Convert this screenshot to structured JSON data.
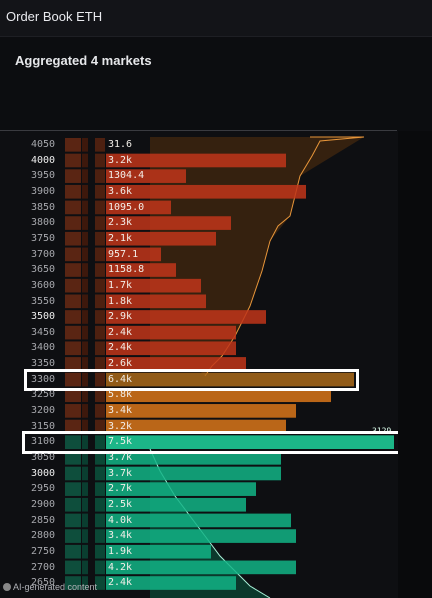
{
  "window": {
    "title": "Order Book ETH"
  },
  "panel": {
    "subtitle": "Aggregated 4 markets"
  },
  "book": {
    "rows": [
      {
        "price": "4050",
        "volume": "31.6",
        "side": "ask",
        "major": false
      },
      {
        "price": "4000",
        "volume": "3.2k",
        "side": "ask",
        "major": true
      },
      {
        "price": "3950",
        "volume": "1304.4",
        "side": "ask",
        "major": false
      },
      {
        "price": "3900",
        "volume": "3.6k",
        "side": "ask",
        "major": false
      },
      {
        "price": "3850",
        "volume": "1095.0",
        "side": "ask",
        "major": false
      },
      {
        "price": "3800",
        "volume": "2.3k",
        "side": "ask",
        "major": false
      },
      {
        "price": "3750",
        "volume": "2.1k",
        "side": "ask",
        "major": false
      },
      {
        "price": "3700",
        "volume": "957.1",
        "side": "ask",
        "major": false
      },
      {
        "price": "3650",
        "volume": "1158.8",
        "side": "ask",
        "major": false
      },
      {
        "price": "3600",
        "volume": "1.7k",
        "side": "ask",
        "major": false
      },
      {
        "price": "3550",
        "volume": "1.8k",
        "side": "ask",
        "major": false
      },
      {
        "price": "3500",
        "volume": "2.9k",
        "side": "ask",
        "major": true
      },
      {
        "price": "3450",
        "volume": "2.4k",
        "side": "ask",
        "major": false
      },
      {
        "price": "3400",
        "volume": "2.4k",
        "side": "ask",
        "major": false
      },
      {
        "price": "3350",
        "volume": "2.6k",
        "side": "ask",
        "major": false
      },
      {
        "price": "3300",
        "volume": "6.4k",
        "side": "ask",
        "major": false
      },
      {
        "price": "3250",
        "volume": "5.8k",
        "side": "ask",
        "major": false
      },
      {
        "price": "3200",
        "volume": "3.4k",
        "side": "ask",
        "major": false
      },
      {
        "price": "3150",
        "volume": "3.2k",
        "side": "ask",
        "major": false
      },
      {
        "price": "3100",
        "volume": "7.5k",
        "side": "bid",
        "major": false
      },
      {
        "price": "3050",
        "volume": "3.7k",
        "side": "bid",
        "major": false
      },
      {
        "price": "3000",
        "volume": "3.7k",
        "side": "bid",
        "major": true
      },
      {
        "price": "2950",
        "volume": "2.7k",
        "side": "bid",
        "major": false
      },
      {
        "price": "2900",
        "volume": "2.5k",
        "side": "bid",
        "major": false
      },
      {
        "price": "2850",
        "volume": "4.0k",
        "side": "bid",
        "major": false
      },
      {
        "price": "2800",
        "volume": "3.4k",
        "side": "bid",
        "major": false
      },
      {
        "price": "2750",
        "volume": "1.9k",
        "side": "bid",
        "major": false
      },
      {
        "price": "2700",
        "volume": "4.2k",
        "side": "bid",
        "major": false
      },
      {
        "price": "2650",
        "volume": "2.4k",
        "side": "bid",
        "major": false
      }
    ],
    "spread_label": "3129",
    "highlighted_prices": [
      "3300",
      "3100"
    ]
  },
  "footer": {
    "text": "AI-generated content"
  },
  "colors": {
    "ask": "#c0351a",
    "ask_bright": "#d8761a",
    "bid": "#12b486",
    "bid_bright": "#1fd39e",
    "highlight": "#ffffff"
  }
}
